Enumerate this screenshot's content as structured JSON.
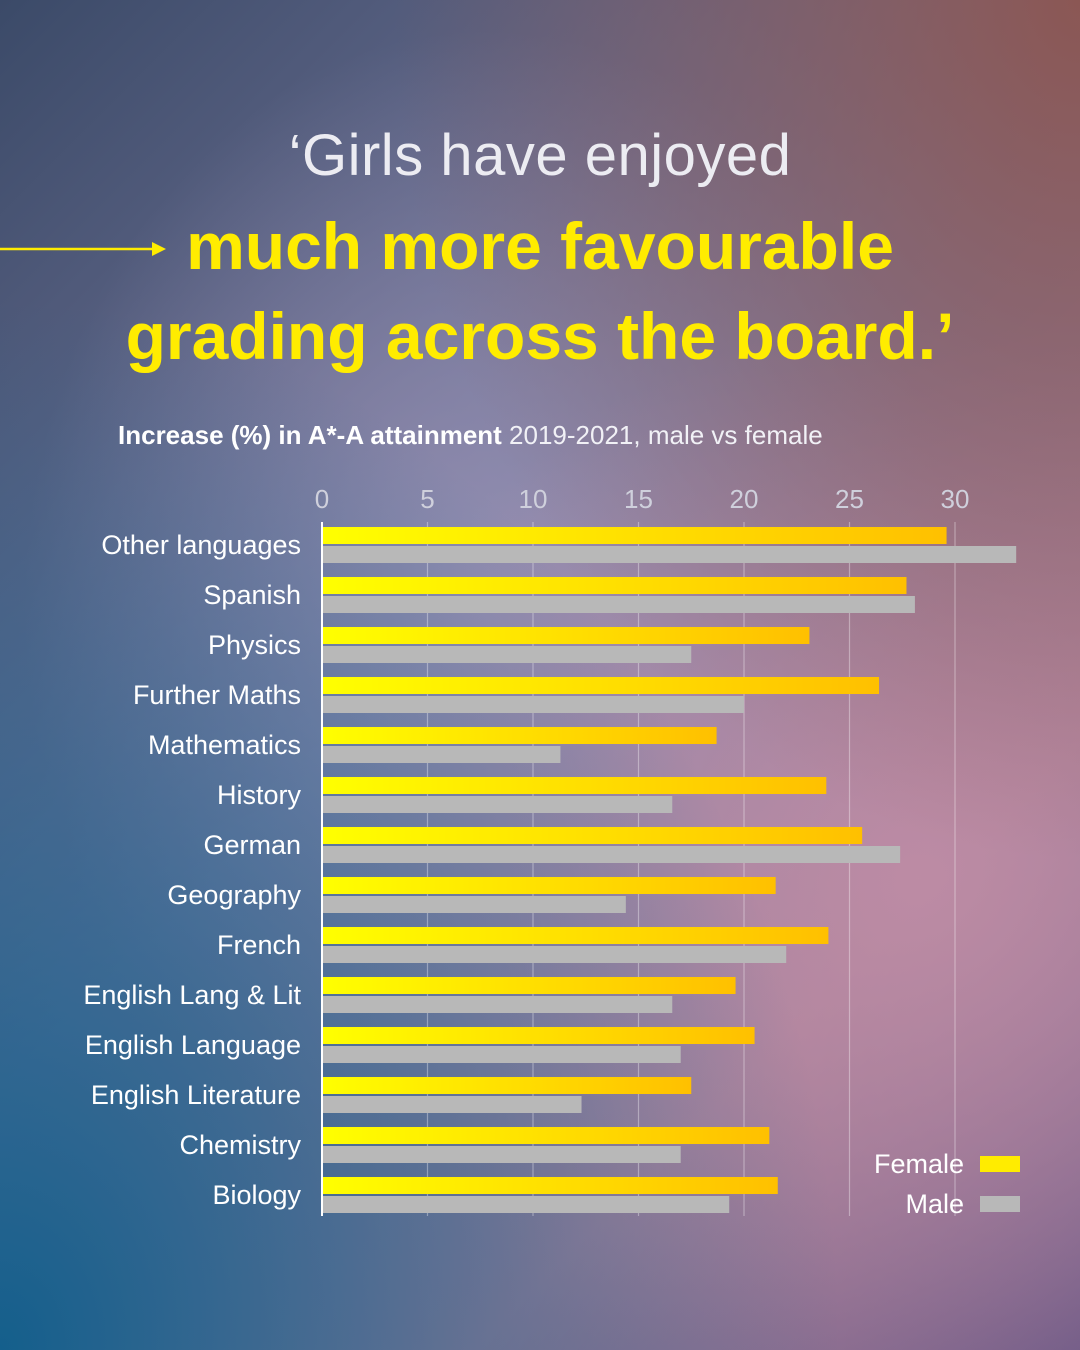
{
  "headline": {
    "line1": "‘Girls have enjoyed",
    "line2": "much more favourable",
    "line3": "grading across the board.’"
  },
  "colors": {
    "accent": "#ffec00",
    "female_start": "#ffff00",
    "female_end": "#ffc000",
    "male": "#b8b8b8",
    "text": "#ffffff"
  },
  "chart_data": {
    "type": "bar",
    "orientation": "horizontal",
    "title_bold": "Increase (%) in A*-A attainment",
    "title_rest": " 2019-2021, male vs female",
    "xticks": [
      "0",
      "5",
      "10",
      "15",
      "20",
      "25",
      "30"
    ],
    "xlim": [
      0,
      33
    ],
    "grid": true,
    "legend_position": "bottom-right",
    "categories": [
      "Other languages",
      "Spanish",
      "Physics",
      "Further Maths",
      "Mathematics",
      "History",
      "German",
      "Geography",
      "French",
      "English Lang & Lit",
      "English Language",
      "English Literature",
      "Chemistry",
      "Biology"
    ],
    "series": [
      {
        "name": "Female",
        "values": [
          29.6,
          27.7,
          23.1,
          26.4,
          18.7,
          23.9,
          25.6,
          21.5,
          24.0,
          19.6,
          20.5,
          17.5,
          21.2,
          21.6
        ]
      },
      {
        "name": "Male",
        "values": [
          32.9,
          28.1,
          17.5,
          20.0,
          11.3,
          16.6,
          27.4,
          14.4,
          22.0,
          16.6,
          17.0,
          12.3,
          17.0,
          19.3
        ]
      }
    ]
  }
}
